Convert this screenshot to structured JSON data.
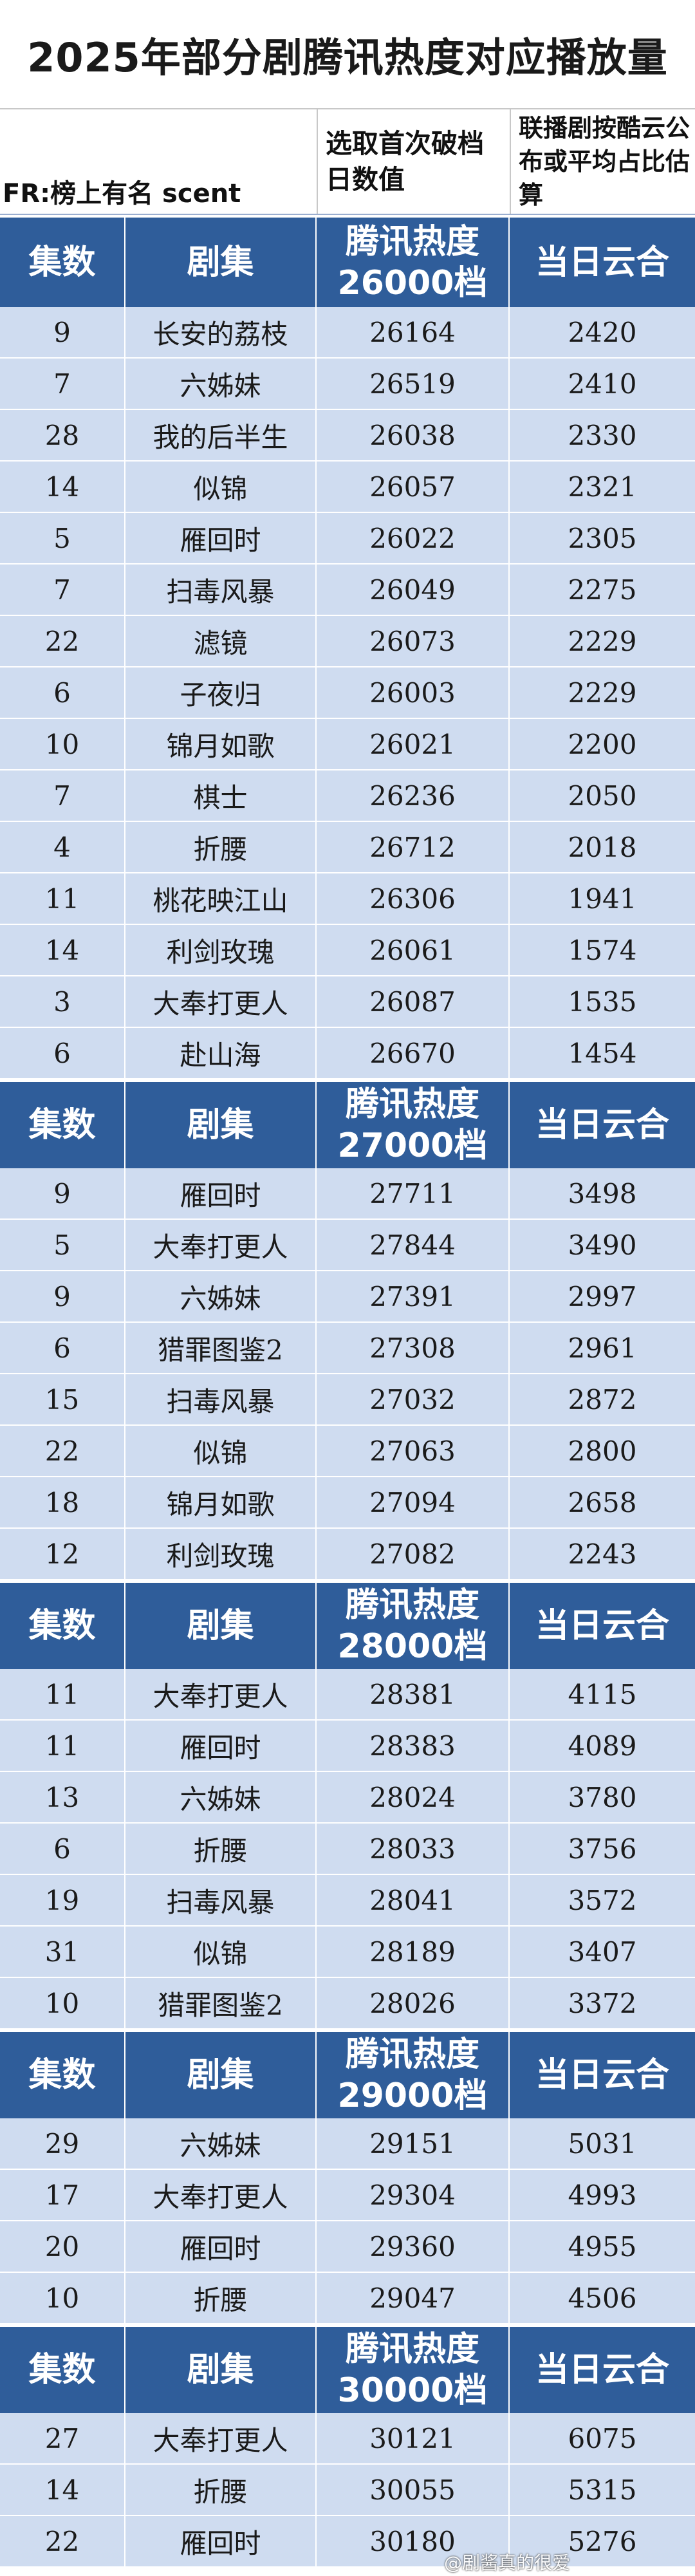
{
  "title": "2025年部分剧腾讯热度对应播放量",
  "credit": "FR:榜上有名 scent",
  "header_notes": {
    "col3": "选取首次破档日数值",
    "col4": "联播剧按酷云公布或平均占比估算"
  },
  "columns": {
    "episodes": "集数",
    "drama": "剧集",
    "platform": "当日云合"
  },
  "sections": [
    {
      "heat_label": "腾讯热度26000档",
      "rows": [
        [
          "9",
          "长安的荔枝",
          "26164",
          "2420"
        ],
        [
          "7",
          "六姊妹",
          "26519",
          "2410"
        ],
        [
          "28",
          "我的后半生",
          "26038",
          "2330"
        ],
        [
          "14",
          "似锦",
          "26057",
          "2321"
        ],
        [
          "5",
          "雁回时",
          "26022",
          "2305"
        ],
        [
          "7",
          "扫毒风暴",
          "26049",
          "2275"
        ],
        [
          "22",
          "滤镜",
          "26073",
          "2229"
        ],
        [
          "6",
          "子夜归",
          "26003",
          "2229"
        ],
        [
          "10",
          "锦月如歌",
          "26021",
          "2200"
        ],
        [
          "7",
          "棋士",
          "26236",
          "2050"
        ],
        [
          "4",
          "折腰",
          "26712",
          "2018"
        ],
        [
          "11",
          "桃花映江山",
          "26306",
          "1941"
        ],
        [
          "14",
          "利剑玫瑰",
          "26061",
          "1574"
        ],
        [
          "3",
          "大奉打更人",
          "26087",
          "1535"
        ],
        [
          "6",
          "赴山海",
          "26670",
          "1454"
        ]
      ]
    },
    {
      "heat_label": "腾讯热度27000档",
      "rows": [
        [
          "9",
          "雁回时",
          "27711",
          "3498"
        ],
        [
          "5",
          "大奉打更人",
          "27844",
          "3490"
        ],
        [
          "9",
          "六姊妹",
          "27391",
          "2997"
        ],
        [
          "6",
          "猎罪图鉴2",
          "27308",
          "2961"
        ],
        [
          "15",
          "扫毒风暴",
          "27032",
          "2872"
        ],
        [
          "22",
          "似锦",
          "27063",
          "2800"
        ],
        [
          "18",
          "锦月如歌",
          "27094",
          "2658"
        ],
        [
          "12",
          "利剑玫瑰",
          "27082",
          "2243"
        ]
      ]
    },
    {
      "heat_label": "腾讯热度28000档",
      "rows": [
        [
          "11",
          "大奉打更人",
          "28381",
          "4115"
        ],
        [
          "11",
          "雁回时",
          "28383",
          "4089"
        ],
        [
          "13",
          "六姊妹",
          "28024",
          "3780"
        ],
        [
          "6",
          "折腰",
          "28033",
          "3756"
        ],
        [
          "19",
          "扫毒风暴",
          "28041",
          "3572"
        ],
        [
          "31",
          "似锦",
          "28189",
          "3407"
        ],
        [
          "10",
          "猎罪图鉴2",
          "28026",
          "3372"
        ]
      ]
    },
    {
      "heat_label": "腾讯热度29000档",
      "rows": [
        [
          "29",
          "六姊妹",
          "29151",
          "5031"
        ],
        [
          "17",
          "大奉打更人",
          "29304",
          "4993"
        ],
        [
          "20",
          "雁回时",
          "29360",
          "4955"
        ],
        [
          "10",
          "折腰",
          "29047",
          "4506"
        ]
      ]
    },
    {
      "heat_label": "腾讯热度30000档",
      "rows": [
        [
          "27",
          "大奉打更人",
          "30121",
          "6075"
        ],
        [
          "14",
          "折腰",
          "30055",
          "5315"
        ],
        [
          "22",
          "雁回时",
          "30180",
          "5276"
        ]
      ]
    }
  ],
  "watermark": "@剧酱真的很爱"
}
